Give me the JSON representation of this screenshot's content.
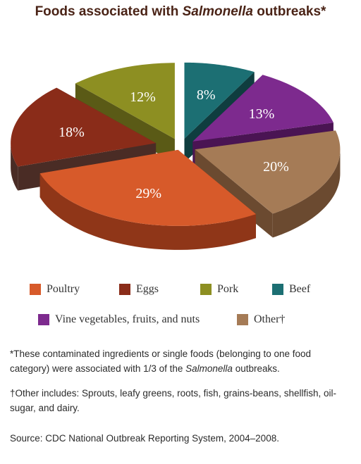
{
  "chart_data": {
    "type": "pie",
    "title": {
      "prefix": "Foods associated with ",
      "italic": "Salmonella",
      "suffix": " outbreaks*"
    },
    "slices": [
      {
        "name": "Beef",
        "value": 8,
        "label": "8%",
        "color": "#1c6f73",
        "side_color": "#0f3d3f",
        "explode": 22
      },
      {
        "name": "Vine vegetables, fruits, and nuts",
        "value": 13,
        "label": "13%",
        "color": "#7d2a8e",
        "side_color": "#4a1453",
        "explode": 22
      },
      {
        "name": "Other†",
        "value": 20,
        "label": "20%",
        "color": "#a57b56",
        "side_color": "#6b4a30",
        "explode": 22
      },
      {
        "name": "Poultry",
        "value": 29,
        "label": "29%",
        "color": "#d75a2a",
        "side_color": "#8f3618",
        "explode": 10
      },
      {
        "name": "Eggs",
        "value": 18,
        "label": "18%",
        "color": "#8a2c19",
        "side_color": "#4a2c25",
        "explode": 36
      },
      {
        "name": "Pork",
        "value": 12,
        "label": "12%",
        "color": "#8d8f22",
        "side_color": "#5a5a16",
        "explode": 22
      }
    ],
    "legend_order": [
      "Poultry",
      "Eggs",
      "Pork",
      "Beef",
      "Vine vegetables, fruits, and nuts",
      "Other†"
    ],
    "legend_placement": "bottom"
  },
  "notes": {
    "footnote1": {
      "prefix": "*These contaminated ingredients or single foods (belonging to one food category) were associated with 1/3 of the ",
      "italic": "Salmonella",
      "suffix": " outbreaks."
    },
    "footnote2": "†Other includes: Sprouts, leafy greens, roots, fish, grains-beans, shellfish, oil-sugar, and dairy.",
    "source": "Source: CDC National Outbreak Reporting System, 2004–2008."
  }
}
